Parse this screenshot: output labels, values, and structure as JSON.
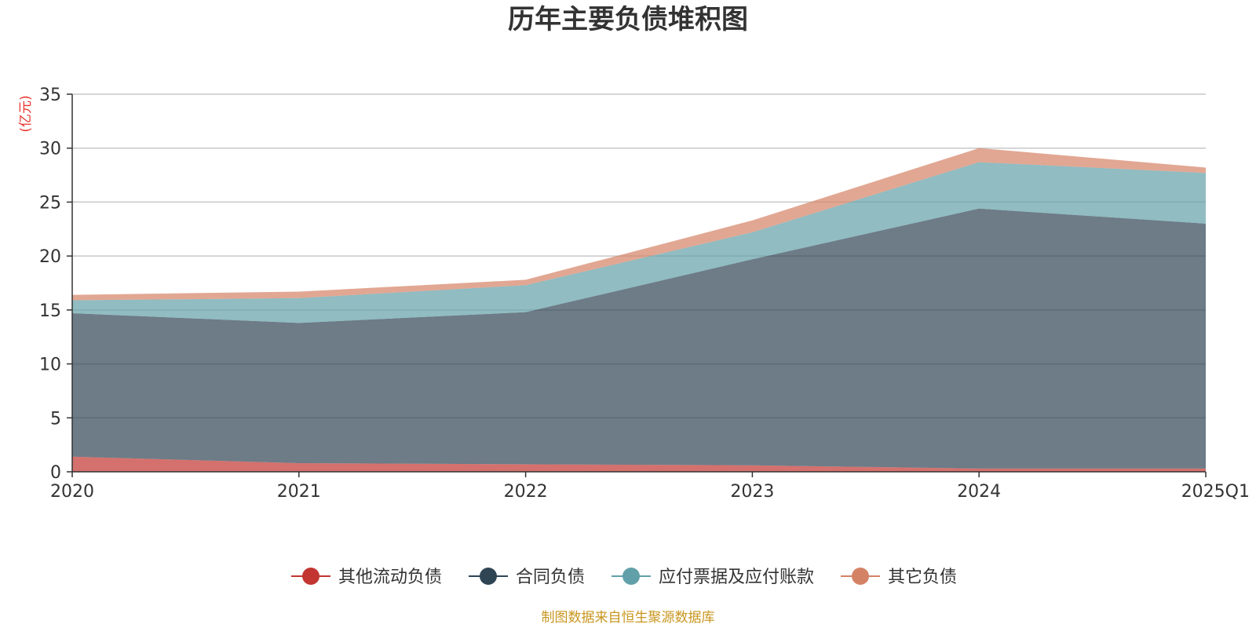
{
  "chart_data": {
    "type": "area",
    "title": "历年主要负债堆积图",
    "unit_label": "(亿元)",
    "x": [
      "2020",
      "2021",
      "2022",
      "2023",
      "2024",
      "2025Q1"
    ],
    "ylim": [
      0,
      35
    ],
    "yticks": [
      "0",
      "5",
      "10",
      "15",
      "20",
      "25",
      "30",
      "35"
    ],
    "grid": true,
    "stacked": true,
    "legend_position": "bottom",
    "series": [
      {
        "name": "其他流动负债",
        "color": "#c23531",
        "values": [
          1.4,
          0.8,
          0.7,
          0.6,
          0.3,
          0.3
        ]
      },
      {
        "name": "合同负债",
        "color": "#2f4554",
        "values": [
          13.3,
          13.0,
          14.1,
          19.1,
          24.1,
          22.7
        ]
      },
      {
        "name": "应付票据及应付账款",
        "color": "#61a0a8",
        "values": [
          1.2,
          2.3,
          2.5,
          2.5,
          4.3,
          4.7
        ]
      },
      {
        "name": "其它负债",
        "color": "#d48265",
        "values": [
          0.5,
          0.6,
          0.5,
          1.1,
          1.3,
          0.5
        ]
      }
    ],
    "source": "制图数据来自恒生聚源数据库"
  }
}
